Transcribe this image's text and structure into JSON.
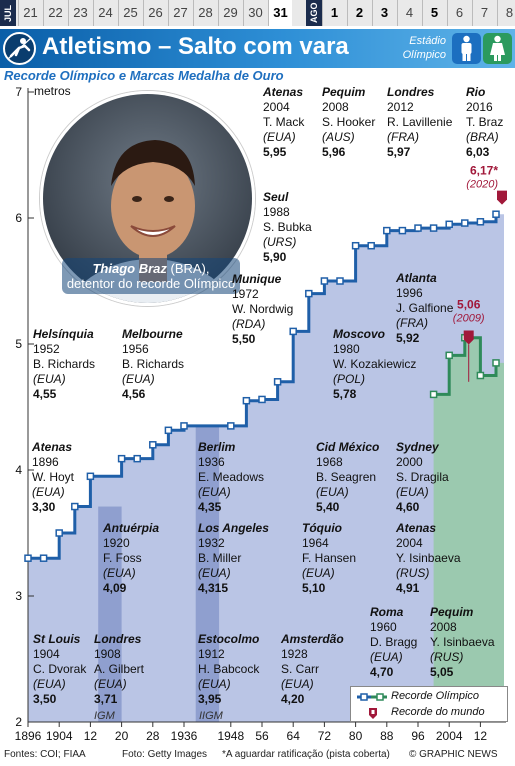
{
  "datebar": {
    "month_jul": "JUL",
    "month_ago": "AGO",
    "dates": [
      {
        "label": "21",
        "bold": false,
        "sel": false
      },
      {
        "label": "22",
        "bold": false,
        "sel": false
      },
      {
        "label": "23",
        "bold": false,
        "sel": false
      },
      {
        "label": "24",
        "bold": false,
        "sel": false
      },
      {
        "label": "25",
        "bold": false,
        "sel": false
      },
      {
        "label": "26",
        "bold": false,
        "sel": false
      },
      {
        "label": "27",
        "bold": false,
        "sel": false
      },
      {
        "label": "28",
        "bold": false,
        "sel": false
      },
      {
        "label": "29",
        "bold": false,
        "sel": false
      },
      {
        "label": "30",
        "bold": false,
        "sel": false
      },
      {
        "label": "31",
        "bold": true,
        "sel": true
      },
      {
        "label": "1",
        "bold": true,
        "sel": false
      },
      {
        "label": "2",
        "bold": true,
        "sel": false
      },
      {
        "label": "3",
        "bold": true,
        "sel": false
      },
      {
        "label": "4",
        "bold": false,
        "sel": false
      },
      {
        "label": "5",
        "bold": true,
        "sel": false
      },
      {
        "label": "6",
        "bold": false,
        "sel": false
      },
      {
        "label": "7",
        "bold": false,
        "sel": false
      },
      {
        "label": "8",
        "bold": false,
        "sel": false
      }
    ]
  },
  "header": {
    "title": "Atletismo – Salto com vara",
    "venue": "Estádio Olímpico",
    "icons": [
      "pole-vault-icon",
      "male-icon",
      "female-icon"
    ]
  },
  "subtitle": "Recorde Olímpico e Marcas Medalha de Ouro",
  "photo": {
    "caption_name": "Thiago Braz",
    "caption_country": " (BRA),",
    "caption_text": "detentor do recorde Olímpico"
  },
  "chart_data": {
    "type": "line",
    "ylabel": "metros",
    "ylim": [
      2,
      7
    ],
    "xlim": [
      1896,
      2016
    ],
    "yticks": [
      "2",
      "3",
      "4",
      "5",
      "6",
      "7"
    ],
    "xticks": [
      {
        "v": 1896,
        "label": "1896"
      },
      {
        "v": 1904,
        "label": "1904"
      },
      {
        "v": 1912,
        "label": "12"
      },
      {
        "v": 1920,
        "label": "20"
      },
      {
        "v": 1928,
        "label": "28"
      },
      {
        "v": 1936,
        "label": "1936"
      },
      {
        "v": 1948,
        "label": "1948"
      },
      {
        "v": 1956,
        "label": "56"
      },
      {
        "v": 1964,
        "label": "64"
      },
      {
        "v": 1972,
        "label": "72"
      },
      {
        "v": 1980,
        "label": "80"
      },
      {
        "v": 1988,
        "label": "88"
      },
      {
        "v": 1996,
        "label": "96"
      },
      {
        "v": 2004,
        "label": "2004"
      },
      {
        "v": 2012,
        "label": "12"
      }
    ],
    "series": [
      {
        "name": "Recorde Olímpico",
        "color": "#1f5fa8",
        "points": [
          [
            1896,
            3.3
          ],
          [
            1900,
            3.3
          ],
          [
            1904,
            3.5
          ],
          [
            1908,
            3.71
          ],
          [
            1912,
            3.95
          ],
          [
            1920,
            4.09
          ],
          [
            1924,
            4.09
          ],
          [
            1928,
            4.2
          ],
          [
            1932,
            4.315
          ],
          [
            1936,
            4.35
          ],
          [
            1948,
            4.35
          ],
          [
            1952,
            4.55
          ],
          [
            1956,
            4.56
          ],
          [
            1960,
            4.7
          ],
          [
            1964,
            5.1
          ],
          [
            1968,
            5.4
          ],
          [
            1972,
            5.5
          ],
          [
            1976,
            5.5
          ],
          [
            1980,
            5.78
          ],
          [
            1984,
            5.78
          ],
          [
            1988,
            5.9
          ],
          [
            1992,
            5.9
          ],
          [
            1996,
            5.92
          ],
          [
            2000,
            5.92
          ],
          [
            2004,
            5.95
          ],
          [
            2008,
            5.96
          ],
          [
            2012,
            5.97
          ],
          [
            2016,
            6.03
          ]
        ]
      },
      {
        "name": "Recorde Olímpico",
        "color": "#2f8a5a",
        "points": [
          [
            2000,
            4.6
          ],
          [
            2004,
            4.91
          ],
          [
            2008,
            5.05
          ],
          [
            2012,
            4.75
          ],
          [
            2016,
            4.85
          ]
        ]
      }
    ],
    "world_records": [
      {
        "year": 2020,
        "value": 6.17,
        "label": "6,17*",
        "year_label": "(2020)"
      },
      {
        "year": 2009,
        "value": 5.06,
        "label": "5,06",
        "year_label": "(2009)"
      }
    ],
    "annotations": [
      {
        "city": "Atenas",
        "year": "1896",
        "name": "W. Hoyt",
        "team": "(EUA)",
        "value": "3,30"
      },
      {
        "city": "St Louis",
        "year": "1904",
        "name": "C. Dvorak",
        "team": "(EUA)",
        "value": "3,50"
      },
      {
        "city": "Londres",
        "year": "1908",
        "name": "A. Gilbert",
        "team": "(EUA)",
        "value": "3,71"
      },
      {
        "city": "Estocolmo",
        "year": "1912",
        "name": "H. Babcock",
        "team": "(EUA)",
        "value": "3,95"
      },
      {
        "city": "Antuérpia",
        "year": "1920",
        "name": "F. Foss",
        "team": "(EUA)",
        "value": "4,09"
      },
      {
        "city": "Amsterdão",
        "year": "1928",
        "name": "S. Carr",
        "team": "(EUA)",
        "value": "4,20"
      },
      {
        "city": "Los Angeles",
        "year": "1932",
        "name": "B. Miller",
        "team": "(EUA)",
        "value": "4,315"
      },
      {
        "city": "Berlim",
        "year": "1936",
        "name": "E. Meadows",
        "team": "(EUA)",
        "value": "4,35"
      },
      {
        "city": "Helsínquia",
        "year": "1952",
        "name": "B. Richards",
        "team": "(EUA)",
        "value": "4,55"
      },
      {
        "city": "Melbourne",
        "year": "1956",
        "name": "B. Richards",
        "team": "(EUA)",
        "value": "4,56"
      },
      {
        "city": "Roma",
        "year": "1960",
        "name": "D. Bragg",
        "team": "(EUA)",
        "value": "4,70"
      },
      {
        "city": "Tóquio",
        "year": "1964",
        "name": "F. Hansen",
        "team": "(EUA)",
        "value": "5,10"
      },
      {
        "city": "Cid México",
        "year": "1968",
        "name": "B. Seagren",
        "team": "(EUA)",
        "value": "5,40"
      },
      {
        "city": "Munique",
        "year": "1972",
        "name": "W. Nordwig",
        "team": "(RDA)",
        "value": "5,50"
      },
      {
        "city": "Moscovo",
        "year": "1980",
        "name": "W. Kozakiewicz",
        "team": "(POL)",
        "value": "5,78"
      },
      {
        "city": "Seul",
        "year": "1988",
        "name": "S. Bubka",
        "team": "(URS)",
        "value": "5,90"
      },
      {
        "city": "Atlanta",
        "year": "1996",
        "name": "J. Galfione",
        "team": "(FRA)",
        "value": "5,92"
      },
      {
        "city": "Atenas",
        "year": "2004",
        "name": "T. Mack",
        "team": "(EUA)",
        "value": "5,95"
      },
      {
        "city": "Pequim",
        "year": "2008",
        "name": "S. Hooker",
        "team": "(AUS)",
        "value": "5,96"
      },
      {
        "city": "Londres",
        "year": "2012",
        "name": "R. Lavillenie",
        "team": "(FRA)",
        "value": "5,97"
      },
      {
        "city": "Rio",
        "year": "2016",
        "name": "T. Braz",
        "team": "(BRA)",
        "value": "6,03"
      },
      {
        "city": "Sydney",
        "year": "2000",
        "name": "S. Dragila",
        "team": "(EUA)",
        "value": "4,60"
      },
      {
        "city": "Atenas",
        "year": "2004",
        "name": "Y. Isinbaeva",
        "team": "(RUS)",
        "value": "4,91"
      },
      {
        "city": "Pequim",
        "year": "2008",
        "name": "Y. Isinbaeva",
        "team": "(RUS)",
        "value": "5,05"
      }
    ],
    "band_labels": [
      "IGM",
      "IIGM"
    ],
    "legend": {
      "olympic": "Recorde Olímpico",
      "world": "Recorde do mundo"
    }
  },
  "footer": {
    "sources": "Fontes: COI; FIAA",
    "photo": "Foto: Getty Images",
    "note": "*A aguardar ratificação (pista coberta)",
    "copyright": "© GRAPHIC NEWS"
  },
  "colors": {
    "men_fill": "#aebbe0",
    "women_fill": "#98c9a8",
    "band": "#8f9fcf",
    "record": "#a1183a"
  }
}
